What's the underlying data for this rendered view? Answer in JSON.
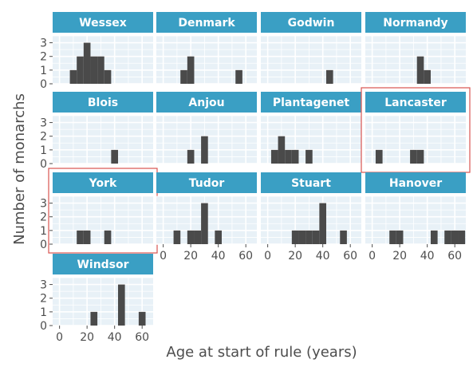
{
  "chart_data": {
    "type": "bar",
    "xlabel": "Age at start of rule (years)",
    "ylabel": "Number of monarchs",
    "xlim": [
      -5,
      68
    ],
    "ylim": [
      0,
      3.5
    ],
    "x_ticks": [
      0,
      20,
      40,
      60
    ],
    "y_ticks": [
      0,
      1,
      2,
      3
    ],
    "bin_width": 5,
    "grid": true,
    "colors": {
      "strip": "#3a9fc4",
      "panel": "#e8f1f7",
      "bar": "#4a4a4a",
      "highlight": "#d9534f",
      "text": "#4d4d4d"
    },
    "panels": [
      {
        "name": "Wessex",
        "highlight": false,
        "bins": [
          {
            "x": 10,
            "count": 1
          },
          {
            "x": 15,
            "count": 2
          },
          {
            "x": 20,
            "count": 3
          },
          {
            "x": 25,
            "count": 2
          },
          {
            "x": 30,
            "count": 2
          },
          {
            "x": 35,
            "count": 1
          }
        ]
      },
      {
        "name": "Denmark",
        "highlight": false,
        "bins": [
          {
            "x": 15,
            "count": 1
          },
          {
            "x": 20,
            "count": 2
          },
          {
            "x": 55,
            "count": 1
          }
        ]
      },
      {
        "name": "Godwin",
        "highlight": false,
        "bins": [
          {
            "x": 45,
            "count": 1
          }
        ]
      },
      {
        "name": "Normandy",
        "highlight": false,
        "bins": [
          {
            "x": 35,
            "count": 2
          },
          {
            "x": 40,
            "count": 1
          }
        ]
      },
      {
        "name": "Blois",
        "highlight": false,
        "bins": [
          {
            "x": 40,
            "count": 1
          }
        ]
      },
      {
        "name": "Anjou",
        "highlight": false,
        "bins": [
          {
            "x": 20,
            "count": 1
          },
          {
            "x": 30,
            "count": 2
          }
        ]
      },
      {
        "name": "Plantagenet",
        "highlight": false,
        "bins": [
          {
            "x": 5,
            "count": 1
          },
          {
            "x": 10,
            "count": 2
          },
          {
            "x": 15,
            "count": 1
          },
          {
            "x": 20,
            "count": 1
          },
          {
            "x": 30,
            "count": 1
          }
        ]
      },
      {
        "name": "Lancaster",
        "highlight": true,
        "bins": [
          {
            "x": 5,
            "count": 1
          },
          {
            "x": 30,
            "count": 1
          },
          {
            "x": 35,
            "count": 1
          }
        ]
      },
      {
        "name": "York",
        "highlight": true,
        "bins": [
          {
            "x": 15,
            "count": 1
          },
          {
            "x": 20,
            "count": 1
          },
          {
            "x": 35,
            "count": 1
          }
        ]
      },
      {
        "name": "Tudor",
        "highlight": false,
        "bins": [
          {
            "x": 10,
            "count": 1
          },
          {
            "x": 20,
            "count": 1
          },
          {
            "x": 25,
            "count": 1
          },
          {
            "x": 30,
            "count": 3
          },
          {
            "x": 40,
            "count": 1
          }
        ]
      },
      {
        "name": "Stuart",
        "highlight": false,
        "bins": [
          {
            "x": 20,
            "count": 1
          },
          {
            "x": 25,
            "count": 1
          },
          {
            "x": 30,
            "count": 1
          },
          {
            "x": 35,
            "count": 1
          },
          {
            "x": 40,
            "count": 3
          },
          {
            "x": 55,
            "count": 1
          }
        ]
      },
      {
        "name": "Hanover",
        "highlight": false,
        "bins": [
          {
            "x": 15,
            "count": 1
          },
          {
            "x": 20,
            "count": 1
          },
          {
            "x": 45,
            "count": 1
          },
          {
            "x": 55,
            "count": 1
          },
          {
            "x": 60,
            "count": 1
          },
          {
            "x": 65,
            "count": 1
          }
        ]
      },
      {
        "name": "Windsor",
        "highlight": false,
        "bins": [
          {
            "x": 25,
            "count": 1
          },
          {
            "x": 45,
            "count": 3
          },
          {
            "x": 60,
            "count": 1
          }
        ]
      }
    ]
  }
}
